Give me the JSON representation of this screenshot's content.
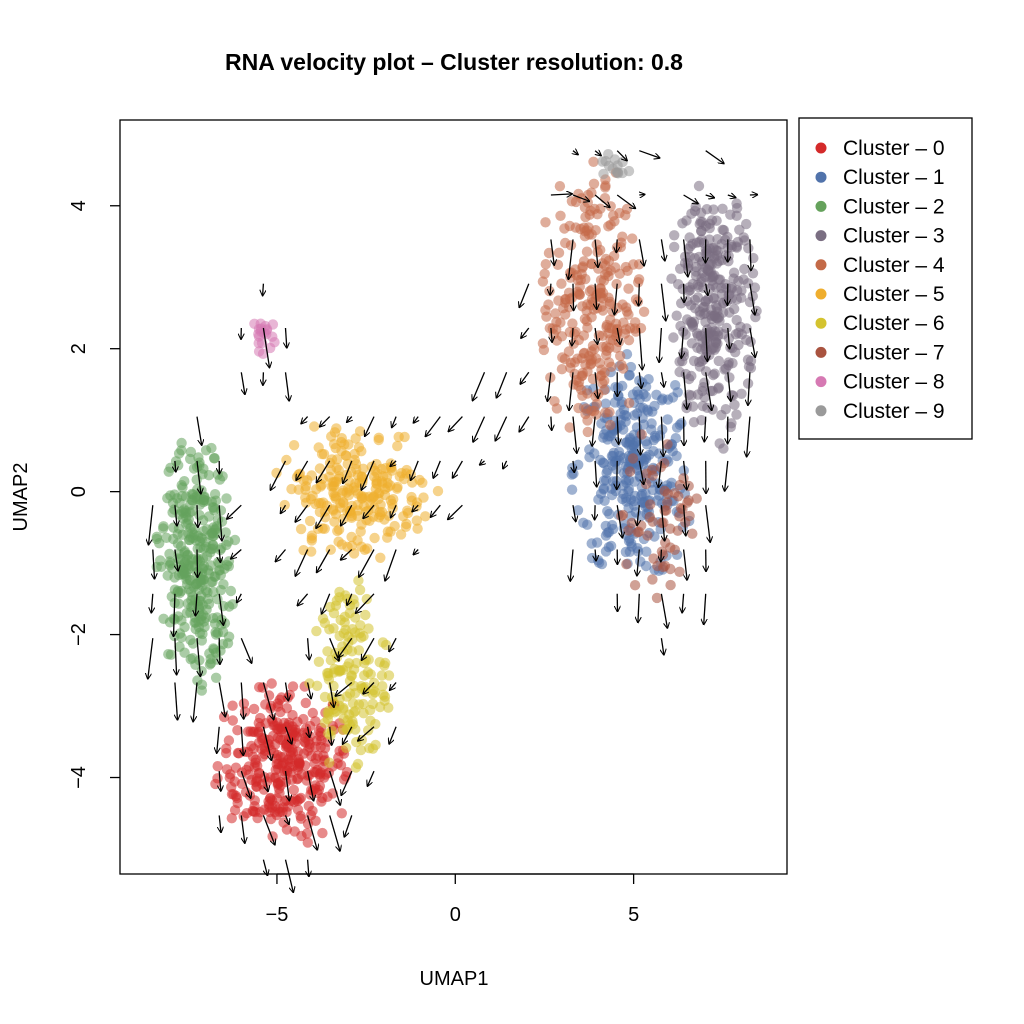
{
  "chart_data": {
    "type": "scatter",
    "title": "RNA velocity plot – Cluster resolution: 0.8",
    "xlabel": "UMAP1",
    "ylabel": "UMAP2",
    "xlim": [
      -9.4,
      9.3
    ],
    "ylim": [
      -5.35,
      5.2
    ],
    "x_ticks": [
      {
        "value": -5,
        "label": "−5"
      },
      {
        "value": 0,
        "label": "0"
      },
      {
        "value": 5,
        "label": "5"
      }
    ],
    "y_ticks": [
      {
        "value": -4,
        "label": "−4"
      },
      {
        "value": -2,
        "label": "−2"
      },
      {
        "value": 0,
        "label": "0"
      },
      {
        "value": 2,
        "label": "2"
      },
      {
        "value": 4,
        "label": "4"
      }
    ],
    "grid": false,
    "legend_position": "outside-right",
    "series": [
      {
        "name": "Cluster – 0",
        "color": "#d42a2a",
        "cx": -4.8,
        "cy": -3.8,
        "rx": 1.7,
        "ry": 1.0,
        "n": 320
      },
      {
        "name": "Cluster – 1",
        "color": "#5173ab",
        "cx": 5.0,
        "cy": 0.3,
        "rx": 1.5,
        "ry": 1.4,
        "n": 300
      },
      {
        "name": "Cluster – 2",
        "color": "#65a25c",
        "cx": -7.3,
        "cy": -1.0,
        "rx": 1.0,
        "ry": 1.6,
        "n": 320
      },
      {
        "name": "Cluster – 3",
        "color": "#7a6e82",
        "cx": 7.2,
        "cy": 2.5,
        "rx": 1.1,
        "ry": 1.7,
        "n": 300
      },
      {
        "name": "Cluster – 4",
        "color": "#c46a48",
        "cx": 3.8,
        "cy": 2.6,
        "rx": 1.3,
        "ry": 1.8,
        "n": 270
      },
      {
        "name": "Cluster – 5",
        "color": "#efae2e",
        "cx": -2.8,
        "cy": 0.0,
        "rx": 2.0,
        "ry": 0.9,
        "n": 230
      },
      {
        "name": "Cluster – 6",
        "color": "#d4c32f",
        "cx": -3.0,
        "cy": -2.6,
        "rx": 1.0,
        "ry": 1.2,
        "n": 150
      },
      {
        "name": "Cluster – 7",
        "color": "#a9533f",
        "cx": 5.8,
        "cy": -0.4,
        "rx": 1.0,
        "ry": 1.2,
        "n": 60
      },
      {
        "name": "Cluster – 8",
        "color": "#d679b3",
        "cx": -5.45,
        "cy": 2.15,
        "rx": 0.35,
        "ry": 0.3,
        "n": 20
      },
      {
        "name": "Cluster – 9",
        "color": "#9a9a9a",
        "cx": 4.4,
        "cy": 4.55,
        "rx": 0.5,
        "ry": 0.2,
        "n": 14
      }
    ]
  }
}
